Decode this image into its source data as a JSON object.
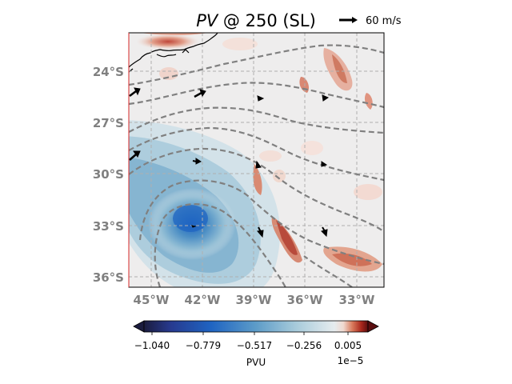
{
  "title": {
    "var": "PV",
    "rest": " @ 250 (SL)"
  },
  "quiver_key": {
    "label": "60 m/s"
  },
  "map": {
    "lat_ticks": [
      "24°S",
      "27°S",
      "30°S",
      "33°S",
      "36°S"
    ],
    "lon_ticks": [
      "45°W",
      "42°W",
      "39°W",
      "36°W",
      "33°W"
    ],
    "gridlines": true,
    "coastline": true
  },
  "colorbar": {
    "ticks": [
      "−1.040",
      "−0.779",
      "−0.517",
      "−0.256",
      "0.005"
    ],
    "label": "PVU",
    "offset": "1e−5",
    "colors": [
      "#1b1c3e",
      "#273a8f",
      "#1f64c2",
      "#5d9cc8",
      "#a8cbdb",
      "#e6ecee",
      "#f0d9d0",
      "#d97a5c",
      "#a9271c",
      "#5a0e0f"
    ]
  }
}
